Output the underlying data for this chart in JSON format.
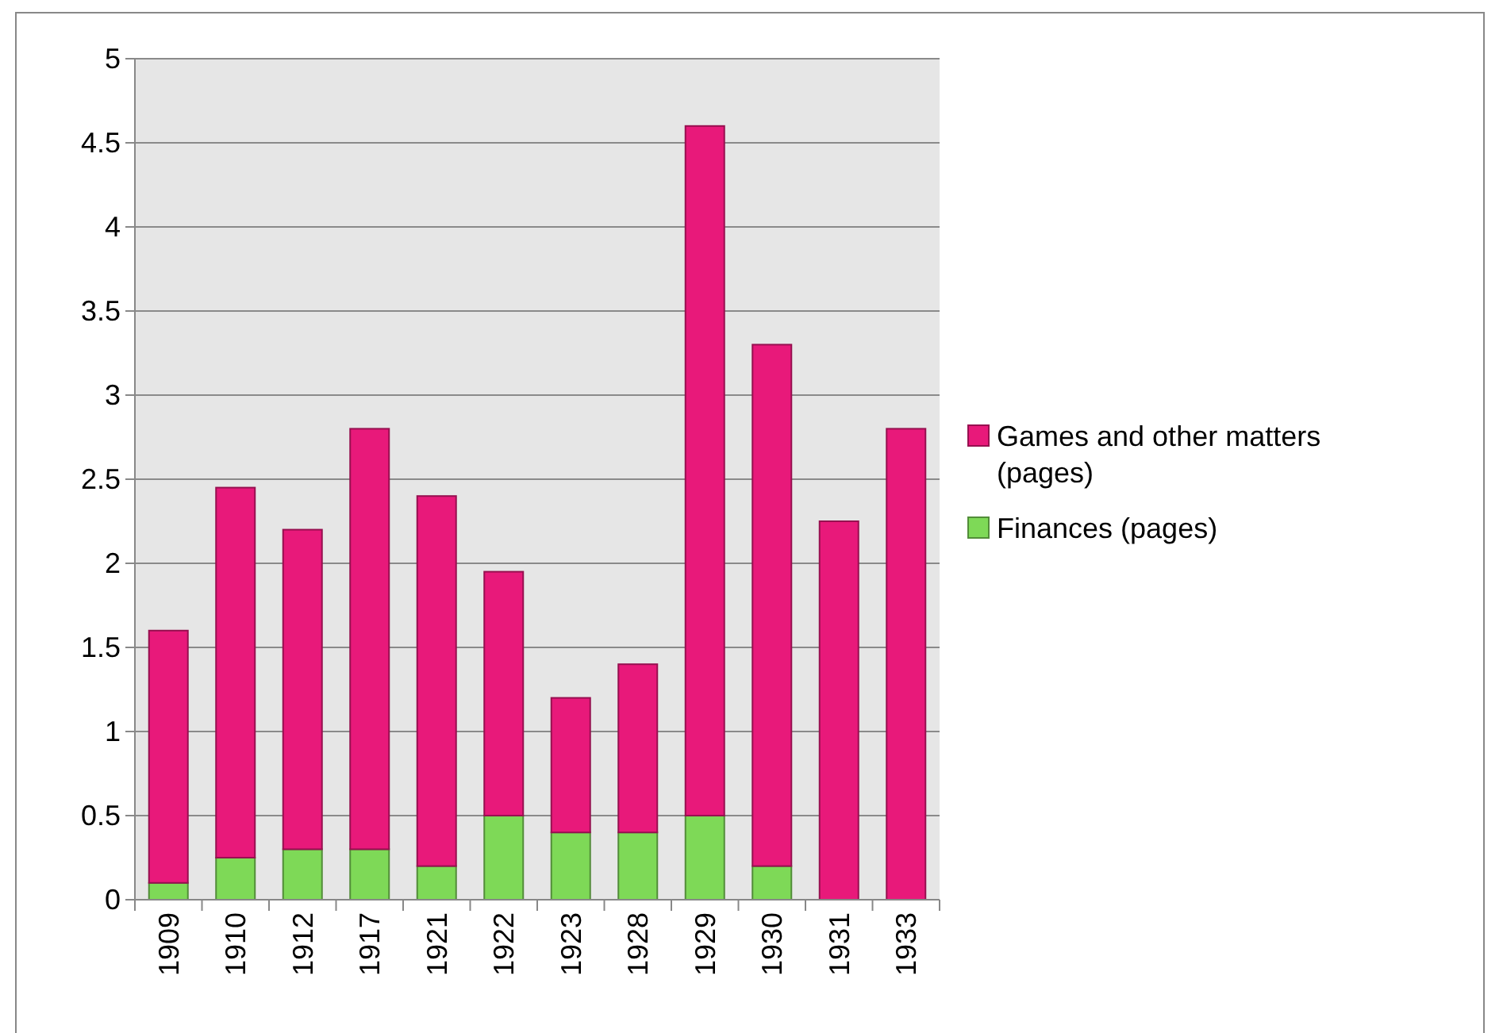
{
  "chart_data": {
    "type": "bar",
    "stacked": true,
    "categories": [
      "1909",
      "1910",
      "1912",
      "1917",
      "1921",
      "1922",
      "1923",
      "1928",
      "1929",
      "1930",
      "1931",
      "1933"
    ],
    "series": [
      {
        "name": "Finances (pages)",
        "color": "#7ed957",
        "values": [
          0.1,
          0.25,
          0.3,
          0.3,
          0.2,
          0.5,
          0.4,
          0.4,
          0.5,
          0.2,
          0,
          0
        ]
      },
      {
        "name": "Games and other matters (pages)",
        "color": "#e8197a",
        "values": [
          1.5,
          2.2,
          1.9,
          2.5,
          2.2,
          1.45,
          0.8,
          1.0,
          4.1,
          3.1,
          2.25,
          2.8
        ]
      }
    ],
    "ylim": [
      0,
      5
    ],
    "yticks": [
      0,
      0.5,
      1,
      1.5,
      2,
      2.5,
      3,
      3.5,
      4,
      4.5,
      5
    ],
    "grid": "y",
    "legend": "right"
  }
}
